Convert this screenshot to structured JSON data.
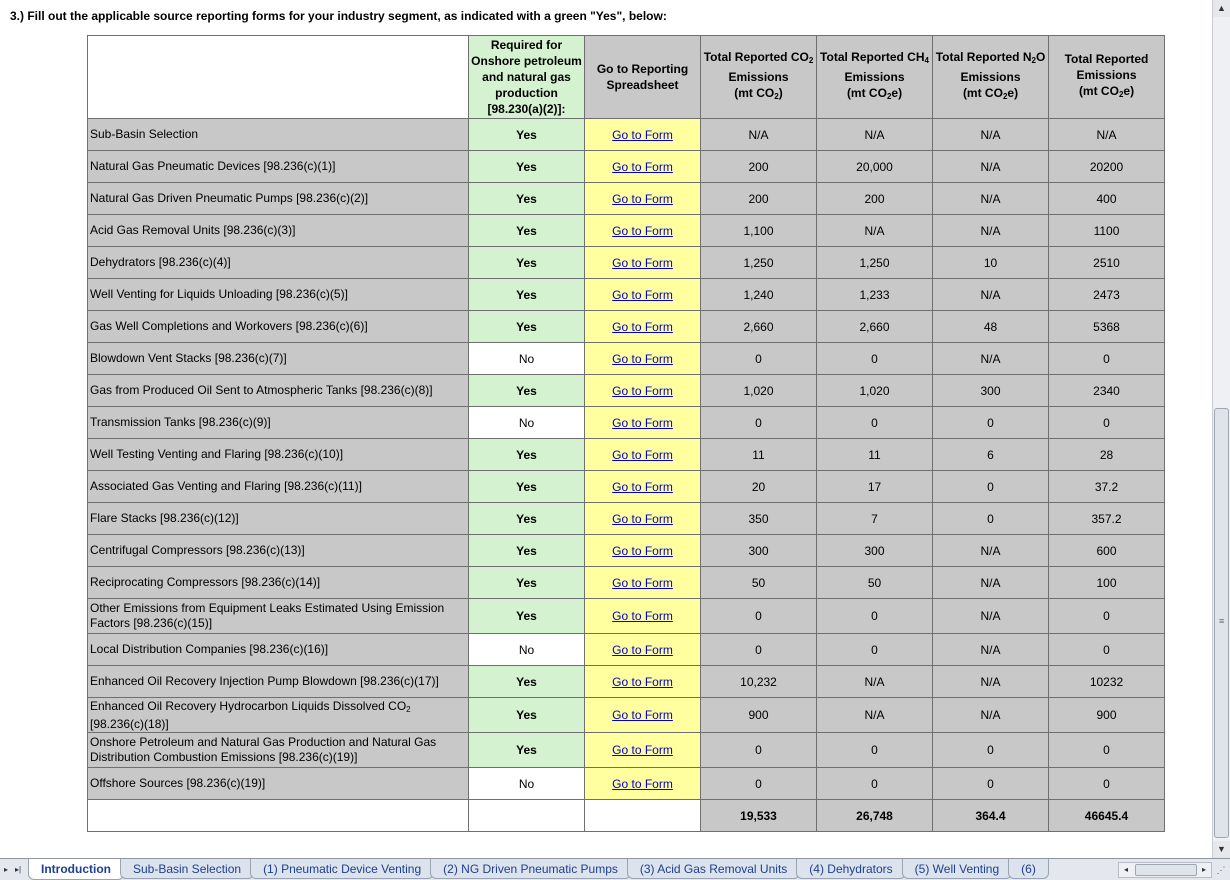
{
  "instruction": "3.) Fill out the applicable source reporting forms for your industry segment, as indicated with a green \"Yes\", below:",
  "headers": {
    "required": "Required for Onshore petroleum and natural gas production [98.230(a)(2)]:",
    "goto": "Go to Reporting Spreadsheet",
    "co2_pre": "Total Reported CO",
    "co2_sub": "2",
    "co2_line2": "Emissions",
    "co2_unit_pre": "(mt CO",
    "co2_unit_sub": "2",
    "co2_unit_post": ")",
    "ch4_pre": "Total Reported CH",
    "ch4_sub": "4",
    "ch4_line2": "Emissions",
    "ch4_unit_pre": "(mt CO",
    "ch4_unit_sub": "2",
    "ch4_unit_post": "e)",
    "n2o_pre": "Total Reported N",
    "n2o_sub": "2",
    "n2o_post": "O",
    "n2o_line2": "Emissions",
    "n2o_unit_pre": "(mt CO",
    "n2o_unit_sub": "2",
    "n2o_unit_post": "e)",
    "total_line1": "Total Reported",
    "total_line2": "Emissions",
    "total_unit_pre": "(mt CO",
    "total_unit_sub": "2",
    "total_unit_post": "e)"
  },
  "rows": [
    {
      "name": "Sub-Basin Selection",
      "required": "Yes",
      "link": "Go to Form",
      "co2": "N/A",
      "ch4": "N/A",
      "n2o": "N/A",
      "total": "N/A"
    },
    {
      "name": "Natural Gas Pneumatic Devices [98.236(c)(1)]",
      "required": "Yes",
      "link": "Go to Form",
      "co2": "200",
      "ch4": "20,000",
      "n2o": "N/A",
      "total": "20200"
    },
    {
      "name": "Natural Gas Driven Pneumatic Pumps [98.236(c)(2)]",
      "required": "Yes",
      "link": "Go to Form",
      "co2": "200",
      "ch4": "200",
      "n2o": "N/A",
      "total": "400"
    },
    {
      "name": "Acid Gas Removal Units [98.236(c)(3)]",
      "required": "Yes",
      "link": "Go to Form",
      "co2": "1,100",
      "ch4": "N/A",
      "n2o": "N/A",
      "total": "1100"
    },
    {
      "name": "Dehydrators [98.236(c)(4)]",
      "required": "Yes",
      "link": "Go to Form",
      "co2": "1,250",
      "ch4": "1,250",
      "n2o": "10",
      "total": "2510"
    },
    {
      "name": "Well Venting for Liquids Unloading [98.236(c)(5)]",
      "required": "Yes",
      "link": "Go to Form",
      "co2": "1,240",
      "ch4": "1,233",
      "n2o": "N/A",
      "total": "2473"
    },
    {
      "name": "Gas Well Completions and Workovers [98.236(c)(6)]",
      "required": "Yes",
      "link": "Go to Form",
      "co2": "2,660",
      "ch4": "2,660",
      "n2o": "48",
      "total": "5368"
    },
    {
      "name": "Blowdown Vent Stacks [98.236(c)(7)]",
      "required": "No",
      "link": "Go to Form",
      "co2": "0",
      "ch4": "0",
      "n2o": "N/A",
      "total": "0"
    },
    {
      "name": "Gas from Produced Oil Sent to Atmospheric Tanks [98.236(c)(8)]",
      "required": "Yes",
      "link": "Go to Form",
      "co2": "1,020",
      "ch4": "1,020",
      "n2o": "300",
      "total": "2340"
    },
    {
      "name": "Transmission Tanks [98.236(c)(9)]",
      "required": "No",
      "link": "Go to Form",
      "co2": "0",
      "ch4": "0",
      "n2o": "0",
      "total": "0"
    },
    {
      "name": "Well Testing Venting and Flaring [98.236(c)(10)]",
      "required": "Yes",
      "link": "Go to Form",
      "co2": "11",
      "ch4": "11",
      "n2o": "6",
      "total": "28"
    },
    {
      "name": "Associated Gas Venting and Flaring [98.236(c)(11)]",
      "required": "Yes",
      "link": "Go to Form",
      "co2": "20",
      "ch4": "17",
      "n2o": "0",
      "total": "37.2"
    },
    {
      "name": "Flare Stacks [98.236(c)(12)]",
      "required": "Yes",
      "link": "Go to Form",
      "co2": "350",
      "ch4": "7",
      "n2o": "0",
      "total": "357.2"
    },
    {
      "name": "Centrifugal Compressors [98.236(c)(13)]",
      "required": "Yes",
      "link": "Go to Form",
      "co2": "300",
      "ch4": "300",
      "n2o": "N/A",
      "total": "600"
    },
    {
      "name": "Reciprocating Compressors [98.236(c)(14)]",
      "required": "Yes",
      "link": "Go to Form",
      "co2": "50",
      "ch4": "50",
      "n2o": "N/A",
      "total": "100"
    },
    {
      "name": "Other Emissions from Equipment Leaks Estimated Using Emission Factors [98.236(c)(15)]",
      "required": "Yes",
      "link": "Go to Form",
      "co2": "0",
      "ch4": "0",
      "n2o": "N/A",
      "total": "0"
    },
    {
      "name": "Local Distribution Companies [98.236(c)(16)]",
      "required": "No",
      "link": "Go to Form",
      "co2": "0",
      "ch4": "0",
      "n2o": "N/A",
      "total": "0"
    },
    {
      "name": "Enhanced Oil Recovery Injection Pump Blowdown [98.236(c)(17)]",
      "required": "Yes",
      "link": "Go to Form",
      "co2": "10,232",
      "ch4": "N/A",
      "n2o": "N/A",
      "total": "10232"
    },
    {
      "name": "Enhanced Oil Recovery Hydrocarbon Liquids Dissolved CO",
      "name_sub": "2",
      "name_post": " [98.236(c)(18)]",
      "required": "Yes",
      "link": "Go to Form",
      "co2": "900",
      "ch4": "N/A",
      "n2o": "N/A",
      "total": "900"
    },
    {
      "name": "Onshore Petroleum and Natural Gas Production and Natural Gas Distribution Combustion Emissions [98.236(c)(19)]",
      "required": "Yes",
      "link": "Go to Form",
      "co2": "0",
      "ch4": "0",
      "n2o": "0",
      "total": "0"
    },
    {
      "name": "Offshore Sources [98.236(c)(19)]",
      "required": "No",
      "link": "Go to Form",
      "co2": "0",
      "ch4": "0",
      "n2o": "0",
      "total": "0"
    }
  ],
  "totals": {
    "co2": "19,533",
    "ch4": "26,748",
    "n2o": "364.4",
    "total": "46645.4"
  },
  "tabs": [
    {
      "label": "Introduction",
      "active": true
    },
    {
      "label": "Sub-Basin Selection",
      "active": false
    },
    {
      "label": "(1) Pneumatic Device Venting",
      "active": false
    },
    {
      "label": "(2) NG Driven Pneumatic Pumps",
      "active": false
    },
    {
      "label": "(3) Acid Gas Removal Units",
      "active": false
    },
    {
      "label": "(4) Dehydrators",
      "active": false
    },
    {
      "label": "(5) Well Venting",
      "active": false
    },
    {
      "label": "(6)",
      "active": false
    }
  ],
  "colors": {
    "yes_green": "#d4f2cf",
    "link_yellow": "#ffffa0",
    "cell_gray": "#c8c8c8",
    "link_blue": "#0000c8"
  }
}
